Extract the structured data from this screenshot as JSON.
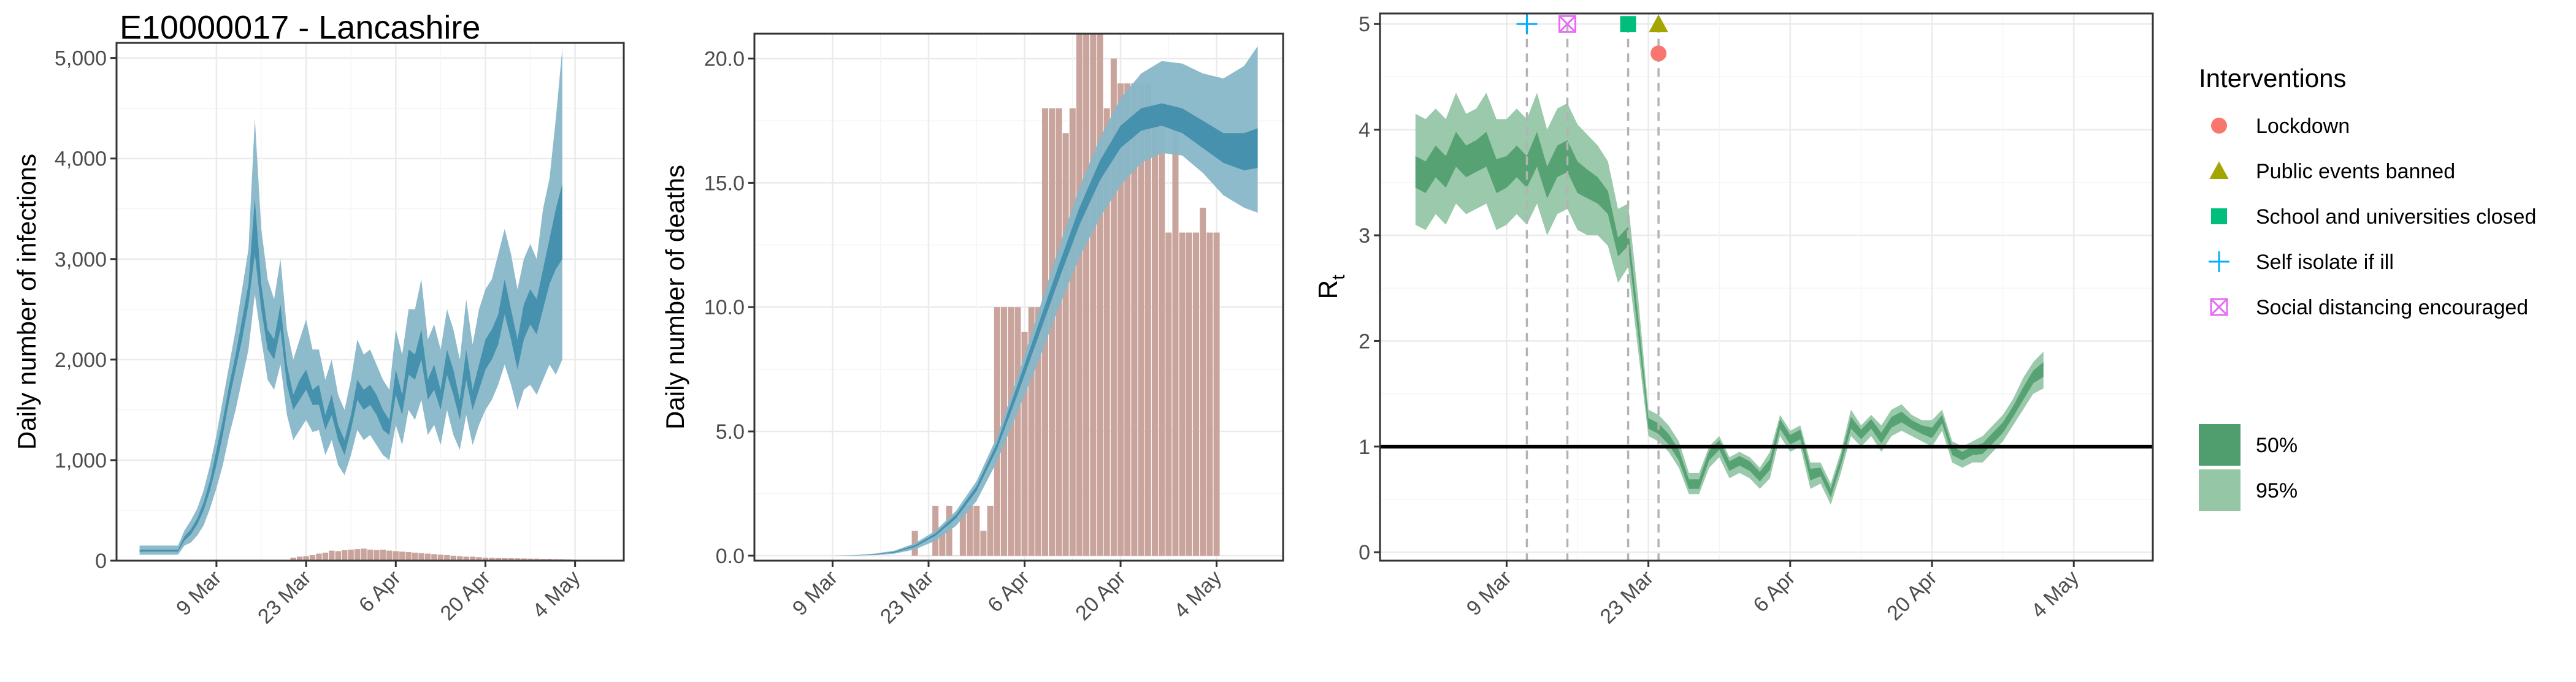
{
  "page": {
    "title": "E10000017 - Lancashire"
  },
  "colors": {
    "model_ci95": "#88b7c8",
    "model_ci50": "#3e8eab",
    "observed_bars": "#c9a49c",
    "rt_ci95": "#95c6a6",
    "rt_ci50": "#509d6d",
    "reference_line": "#000000",
    "intervention_line": "#b3b3b3",
    "lockdown": "#f8766d",
    "public_events_banned": "#a3a500",
    "school_closed": "#00bf7d",
    "self_isolate": "#00b0f6",
    "social_distancing": "#e76bf3"
  },
  "legend": {
    "interventions_title": "Interventions",
    "interventions": [
      {
        "label": "Lockdown",
        "shape": "circle",
        "color": "#f8766d"
      },
      {
        "label": "Public events banned",
        "shape": "triangle",
        "color": "#a3a500"
      },
      {
        "label": "School and universities closed",
        "shape": "square",
        "color": "#00bf7d"
      },
      {
        "label": "Self isolate if ill",
        "shape": "plus",
        "color": "#00b0f6"
      },
      {
        "label": "Social distancing encouraged",
        "shape": "square-cross",
        "color": "#e76bf3"
      }
    ],
    "bands": [
      {
        "label": "50%",
        "color": "#509d6d"
      },
      {
        "label": "95%",
        "color": "#95c6a6"
      }
    ]
  },
  "chart_data": [
    {
      "type": "area",
      "ylabel": "Daily number of infections",
      "xlabel": "",
      "x_ticks": [
        {
          "day": 8,
          "label": "9 Mar"
        },
        {
          "day": 22,
          "label": "23 Mar"
        },
        {
          "day": 36,
          "label": "6 Apr"
        },
        {
          "day": 50,
          "label": "20 Apr"
        },
        {
          "day": 64,
          "label": "4 May"
        }
      ],
      "x_range": [
        -7.6,
        71.6
      ],
      "y_ticks": [
        {
          "value": 0,
          "label": "0"
        },
        {
          "value": 1000,
          "label": "1,000"
        },
        {
          "value": 2000,
          "label": "2,000"
        },
        {
          "value": 3000,
          "label": "3,000"
        },
        {
          "value": 4000,
          "label": "4,000"
        },
        {
          "value": 5000,
          "label": "5,000"
        }
      ],
      "ylim": [
        0,
        5150
      ],
      "x_start_day": -4,
      "series": [
        {
          "band": "95%",
          "lower": [
            60,
            60,
            60,
            60,
            60,
            60,
            60,
            150,
            180,
            250,
            350,
            520,
            720,
            950,
            1250,
            1500,
            1800,
            2100,
            2650,
            2200,
            1800,
            1700,
            1950,
            1450,
            1200,
            1300,
            1400,
            1280,
            1300,
            1050,
            1200,
            950,
            850,
            1050,
            1300,
            1200,
            1250,
            1150,
            1050,
            1000,
            1350,
            1150,
            1500,
            1400,
            1600,
            1250,
            1350,
            1150,
            1500,
            1250,
            1100,
            1450,
            1150,
            1350,
            1500,
            1600,
            1750,
            1950,
            1750,
            1500,
            1700,
            1750,
            1650,
            1800,
            1950,
            1850,
            2000
          ],
          "upper": [
            150,
            150,
            150,
            150,
            150,
            150,
            150,
            300,
            400,
            520,
            700,
            950,
            1250,
            1600,
            1950,
            2300,
            2700,
            3100,
            4400,
            3300,
            2800,
            2600,
            3000,
            2300,
            2000,
            2200,
            2400,
            2100,
            2100,
            1800,
            2000,
            1650,
            1500,
            1800,
            2200,
            2050,
            2100,
            1950,
            1800,
            1700,
            2300,
            2050,
            2500,
            2500,
            2800,
            2200,
            2350,
            2100,
            2500,
            2300,
            2000,
            2600,
            2150,
            2500,
            2700,
            2800,
            3050,
            3300,
            3050,
            2700,
            3000,
            3150,
            3000,
            3500,
            3800,
            4400,
            5100
          ]
        },
        {
          "band": "50%",
          "lower": [
            90,
            90,
            90,
            90,
            90,
            90,
            90,
            200,
            260,
            360,
            500,
            700,
            950,
            1250,
            1600,
            1900,
            2200,
            2550,
            3050,
            2500,
            2100,
            2000,
            2300,
            1750,
            1500,
            1600,
            1700,
            1550,
            1550,
            1300,
            1450,
            1200,
            1050,
            1300,
            1600,
            1500,
            1550,
            1450,
            1300,
            1250,
            1650,
            1450,
            1850,
            1800,
            2000,
            1600,
            1700,
            1500,
            1850,
            1650,
            1400,
            1800,
            1500,
            1700,
            1900,
            2000,
            2150,
            2450,
            2200,
            1900,
            2200,
            2350,
            2250,
            2500,
            2750,
            2900,
            3000
          ],
          "upper": [
            110,
            110,
            110,
            110,
            110,
            110,
            110,
            240,
            310,
            420,
            580,
            800,
            1100,
            1400,
            1750,
            2050,
            2400,
            2750,
            3600,
            2750,
            2300,
            2200,
            2550,
            1950,
            1650,
            1800,
            1900,
            1700,
            1750,
            1450,
            1650,
            1350,
            1200,
            1450,
            1800,
            1700,
            1750,
            1650,
            1500,
            1400,
            1900,
            1650,
            2100,
            2050,
            2300,
            1800,
            1950,
            1700,
            2100,
            1900,
            1600,
            2100,
            1700,
            1950,
            2200,
            2300,
            2450,
            2800,
            2500,
            2200,
            2550,
            2700,
            2600,
            2900,
            3200,
            3500,
            3750
          ]
        }
      ],
      "bars": {
        "start_day": 20,
        "values": [
          30,
          40,
          45,
          55,
          70,
          80,
          100,
          95,
          105,
          110,
          115,
          120,
          110,
          105,
          110,
          100,
          95,
          90,
          85,
          80,
          75,
          70,
          65,
          60,
          55,
          50,
          45,
          40,
          40,
          35,
          30,
          28,
          26,
          25,
          24,
          23,
          22,
          20,
          20,
          18,
          18,
          15,
          15,
          12
        ]
      }
    },
    {
      "type": "area",
      "ylabel": "Daily number of deaths",
      "xlabel": "",
      "x_ticks": [
        {
          "day": 8,
          "label": "9 Mar"
        },
        {
          "day": 22,
          "label": "23 Mar"
        },
        {
          "day": 36,
          "label": "6 Apr"
        },
        {
          "day": 50,
          "label": "20 Apr"
        },
        {
          "day": 64,
          "label": "4 May"
        }
      ],
      "x_range": [
        -3.4,
        73.7
      ],
      "y_ticks": [
        {
          "value": 0,
          "label": "0.0"
        },
        {
          "value": 5,
          "label": "5.0"
        },
        {
          "value": 10,
          "label": "10.0"
        },
        {
          "value": 15,
          "label": "15.0"
        },
        {
          "value": 20,
          "label": "20.0"
        }
      ],
      "ylim": [
        -0.2,
        21
      ],
      "x_start_day": 1,
      "series": [
        {
          "band": "95%",
          "x": [
            1,
            5,
            8,
            11,
            14,
            17,
            20,
            23,
            26,
            29,
            32,
            35,
            38,
            41,
            44,
            47,
            50,
            53,
            56,
            59,
            62,
            65,
            68,
            70
          ],
          "lower": [
            0,
            0,
            0,
            0,
            0.02,
            0.08,
            0.25,
            0.6,
            1.2,
            2.2,
            3.8,
            5.8,
            7.8,
            10.0,
            12.0,
            13.6,
            14.9,
            15.8,
            16.2,
            16.1,
            15.4,
            14.5,
            14.0,
            13.8
          ],
          "upper": [
            0,
            0,
            0,
            0.02,
            0.08,
            0.2,
            0.5,
            1.0,
            1.8,
            3.0,
            4.8,
            7.2,
            9.8,
            12.4,
            14.8,
            16.8,
            18.4,
            19.4,
            19.9,
            19.8,
            19.4,
            19.2,
            19.7,
            20.5
          ]
        },
        {
          "band": "50%",
          "x": [
            1,
            5,
            8,
            11,
            14,
            17,
            20,
            23,
            26,
            29,
            32,
            35,
            38,
            41,
            44,
            47,
            50,
            53,
            56,
            59,
            62,
            65,
            68,
            70
          ],
          "lower": [
            0,
            0,
            0,
            0.01,
            0.04,
            0.12,
            0.35,
            0.8,
            1.5,
            2.6,
            4.3,
            6.5,
            8.8,
            11.1,
            13.3,
            15.1,
            16.4,
            17.1,
            17.3,
            17.0,
            16.4,
            15.8,
            15.5,
            15.6
          ],
          "upper": [
            0,
            0,
            0,
            0.01,
            0.06,
            0.16,
            0.42,
            0.9,
            1.65,
            2.8,
            4.55,
            6.9,
            9.3,
            11.7,
            14.0,
            15.9,
            17.3,
            18.0,
            18.2,
            18.0,
            17.5,
            17.0,
            17.0,
            17.2
          ]
        }
      ],
      "bars": {
        "start_day": 20,
        "values": [
          1,
          0,
          0,
          2,
          1,
          2,
          0,
          2,
          2,
          2,
          1,
          2,
          10,
          10,
          10,
          10,
          9,
          10,
          10,
          18,
          18,
          18,
          17,
          18,
          21,
          21,
          21,
          21,
          18,
          20,
          19,
          19,
          19,
          19,
          19,
          18,
          18,
          13,
          18,
          13,
          13,
          13,
          14,
          13,
          13
        ]
      }
    },
    {
      "type": "area",
      "ylabel": "Rt",
      "ylabel_main": "R",
      "ylabel_sub": "t",
      "xlabel": "",
      "x_ticks": [
        {
          "day": 8,
          "label": "9 Mar"
        },
        {
          "day": 22,
          "label": "23 Mar"
        },
        {
          "day": 36,
          "label": "6 Apr"
        },
        {
          "day": 50,
          "label": "20 Apr"
        },
        {
          "day": 64,
          "label": "4 May"
        }
      ],
      "x_range": [
        -4.5,
        71.8
      ],
      "y_ticks": [
        {
          "value": 0,
          "label": "0"
        },
        {
          "value": 1,
          "label": "1"
        },
        {
          "value": 2,
          "label": "2"
        },
        {
          "value": 3,
          "label": "3"
        },
        {
          "value": 4,
          "label": "4"
        },
        {
          "value": 5,
          "label": "5"
        }
      ],
      "ylim": [
        -0.08,
        5.1
      ],
      "reference_line": 1,
      "x_start_day": -1,
      "series": [
        {
          "band": "95%",
          "lower": [
            3.1,
            3.05,
            3.2,
            3.1,
            3.3,
            3.2,
            3.25,
            3.3,
            3.05,
            3.1,
            3.2,
            3.1,
            3.3,
            3.0,
            3.2,
            3.25,
            3.05,
            3.0,
            3.0,
            2.9,
            2.55,
            2.7,
            1.9,
            1.1,
            1.05,
            0.95,
            0.8,
            0.55,
            0.55,
            0.8,
            0.9,
            0.7,
            0.75,
            0.7,
            0.6,
            0.7,
            1.1,
            0.95,
            1.0,
            0.6,
            0.65,
            0.45,
            0.75,
            1.1,
            1.0,
            1.1,
            0.95,
            1.1,
            1.15,
            1.1,
            1.05,
            1.0,
            1.15,
            0.85,
            0.8,
            0.85,
            0.85,
            0.95,
            1.05,
            1.2,
            1.35,
            1.5,
            1.55
          ],
          "upper": [
            4.15,
            4.1,
            4.2,
            4.1,
            4.35,
            4.15,
            4.2,
            4.35,
            4.1,
            4.1,
            4.2,
            4.1,
            4.35,
            4.0,
            4.2,
            4.25,
            4.05,
            3.95,
            3.85,
            3.7,
            3.25,
            3.3,
            2.4,
            1.35,
            1.3,
            1.2,
            1.05,
            0.75,
            0.75,
            1.0,
            1.1,
            0.9,
            0.95,
            0.9,
            0.8,
            0.95,
            1.3,
            1.15,
            1.2,
            0.85,
            0.85,
            0.65,
            0.95,
            1.35,
            1.2,
            1.3,
            1.2,
            1.35,
            1.4,
            1.3,
            1.25,
            1.25,
            1.35,
            1.05,
            1.0,
            1.05,
            1.1,
            1.2,
            1.3,
            1.45,
            1.65,
            1.8,
            1.9
          ]
        },
        {
          "band": "50%",
          "lower": [
            3.45,
            3.4,
            3.55,
            3.45,
            3.65,
            3.55,
            3.6,
            3.65,
            3.4,
            3.45,
            3.55,
            3.45,
            3.65,
            3.35,
            3.55,
            3.6,
            3.4,
            3.35,
            3.3,
            3.2,
            2.8,
            2.9,
            2.05,
            1.17,
            1.12,
            1.02,
            0.87,
            0.6,
            0.6,
            0.87,
            0.97,
            0.77,
            0.82,
            0.77,
            0.67,
            0.78,
            1.17,
            1.02,
            1.07,
            0.68,
            0.72,
            0.52,
            0.82,
            1.17,
            1.07,
            1.17,
            1.03,
            1.18,
            1.23,
            1.17,
            1.12,
            1.08,
            1.22,
            0.92,
            0.87,
            0.92,
            0.93,
            1.03,
            1.13,
            1.28,
            1.44,
            1.6,
            1.66
          ],
          "upper": [
            3.75,
            3.7,
            3.85,
            3.75,
            3.98,
            3.85,
            3.9,
            3.98,
            3.72,
            3.75,
            3.85,
            3.75,
            3.98,
            3.65,
            3.85,
            3.9,
            3.7,
            3.62,
            3.55,
            3.42,
            2.98,
            3.08,
            2.22,
            1.27,
            1.22,
            1.12,
            0.97,
            0.69,
            0.69,
            0.96,
            1.06,
            0.86,
            0.91,
            0.86,
            0.76,
            0.88,
            1.26,
            1.11,
            1.16,
            0.79,
            0.8,
            0.6,
            0.9,
            1.28,
            1.16,
            1.26,
            1.13,
            1.28,
            1.33,
            1.25,
            1.2,
            1.18,
            1.3,
            1.0,
            0.95,
            1.0,
            1.03,
            1.13,
            1.23,
            1.38,
            1.56,
            1.72,
            1.8
          ]
        }
      ],
      "interventions": [
        {
          "label": "Self isolate if ill",
          "day": 10
        },
        {
          "label": "Social distancing encouraged",
          "day": 14
        },
        {
          "label": "School and universities closed",
          "day": 20
        },
        {
          "label": "Public events banned",
          "day": 23
        },
        {
          "label": "Lockdown",
          "day": 23
        }
      ]
    }
  ]
}
